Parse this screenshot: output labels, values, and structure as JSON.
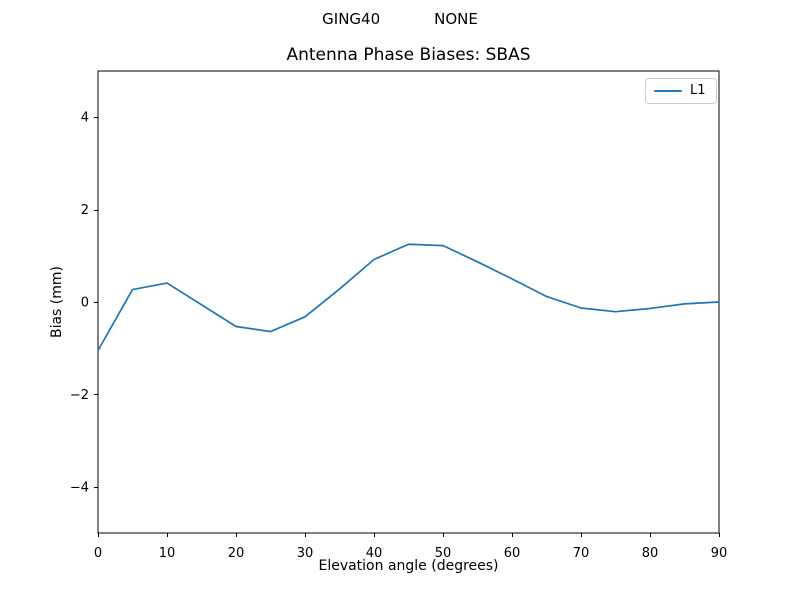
{
  "figure": {
    "title_left": "GING40",
    "title_right": "NONE",
    "colors": {
      "line": "#1f77b4",
      "axis": "#000000",
      "text": "#000000",
      "legend_border": "#cccccc",
      "background": "#ffffff"
    }
  },
  "chart_data": {
    "type": "line",
    "title": "Antenna Phase Biases: SBAS",
    "xlabel": "Elevation angle (degrees)",
    "ylabel": "Bias (mm)",
    "xlim": [
      0,
      90
    ],
    "ylim": [
      -5,
      5
    ],
    "xticks": [
      0,
      10,
      20,
      30,
      40,
      50,
      60,
      70,
      80,
      90
    ],
    "yticks": [
      -4,
      -2,
      0,
      2,
      4
    ],
    "grid": false,
    "legend": {
      "position": "upper right",
      "entries": [
        "L1"
      ]
    },
    "series": [
      {
        "name": "L1",
        "color": "#1f77b4",
        "x": [
          0,
          5,
          10,
          15,
          20,
          25,
          30,
          35,
          40,
          45,
          50,
          55,
          60,
          65,
          70,
          75,
          80,
          85,
          90
        ],
        "y": [
          -1.05,
          0.27,
          0.41,
          -0.06,
          -0.53,
          -0.64,
          -0.32,
          0.28,
          0.92,
          1.25,
          1.22,
          0.87,
          0.5,
          0.12,
          -0.13,
          -0.21,
          -0.14,
          -0.04,
          0.0
        ]
      }
    ]
  }
}
